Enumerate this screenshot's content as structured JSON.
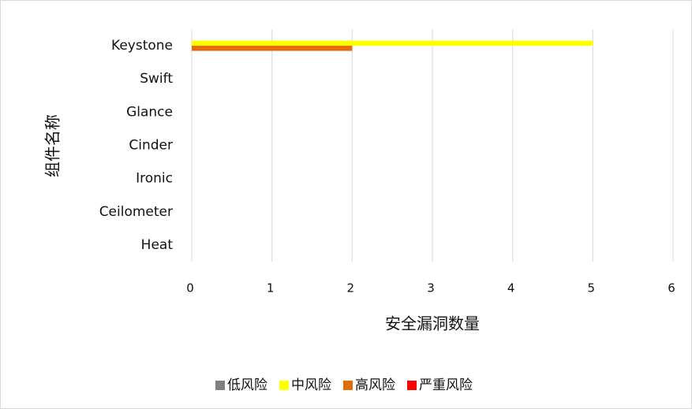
{
  "chart_data": {
    "type": "bar",
    "orientation": "horizontal",
    "x_label": "安全漏洞数量",
    "y_label": "组件名称",
    "categories": [
      "Keystone",
      "Swift",
      "Glance",
      "Cinder",
      "Ironic",
      "Ceilometer",
      "Heat"
    ],
    "series": [
      {
        "name": "低风险",
        "color": "#808080",
        "values": [
          0,
          0,
          0,
          0,
          0,
          0,
          0
        ]
      },
      {
        "name": "中风险",
        "color": "#ffff00",
        "values": [
          5,
          0,
          0,
          0,
          0,
          0,
          0
        ]
      },
      {
        "name": "高风险",
        "color": "#e46c0a",
        "values": [
          2,
          0,
          0,
          0,
          0,
          0,
          0
        ]
      },
      {
        "name": "严重风险",
        "color": "#ff0000",
        "values": [
          0,
          0,
          0,
          0,
          0,
          0,
          0
        ]
      }
    ],
    "xlim": [
      0,
      6
    ],
    "xticks": [
      0,
      1,
      2,
      3,
      4,
      5,
      6
    ],
    "grid": true,
    "legend": "bottom"
  }
}
